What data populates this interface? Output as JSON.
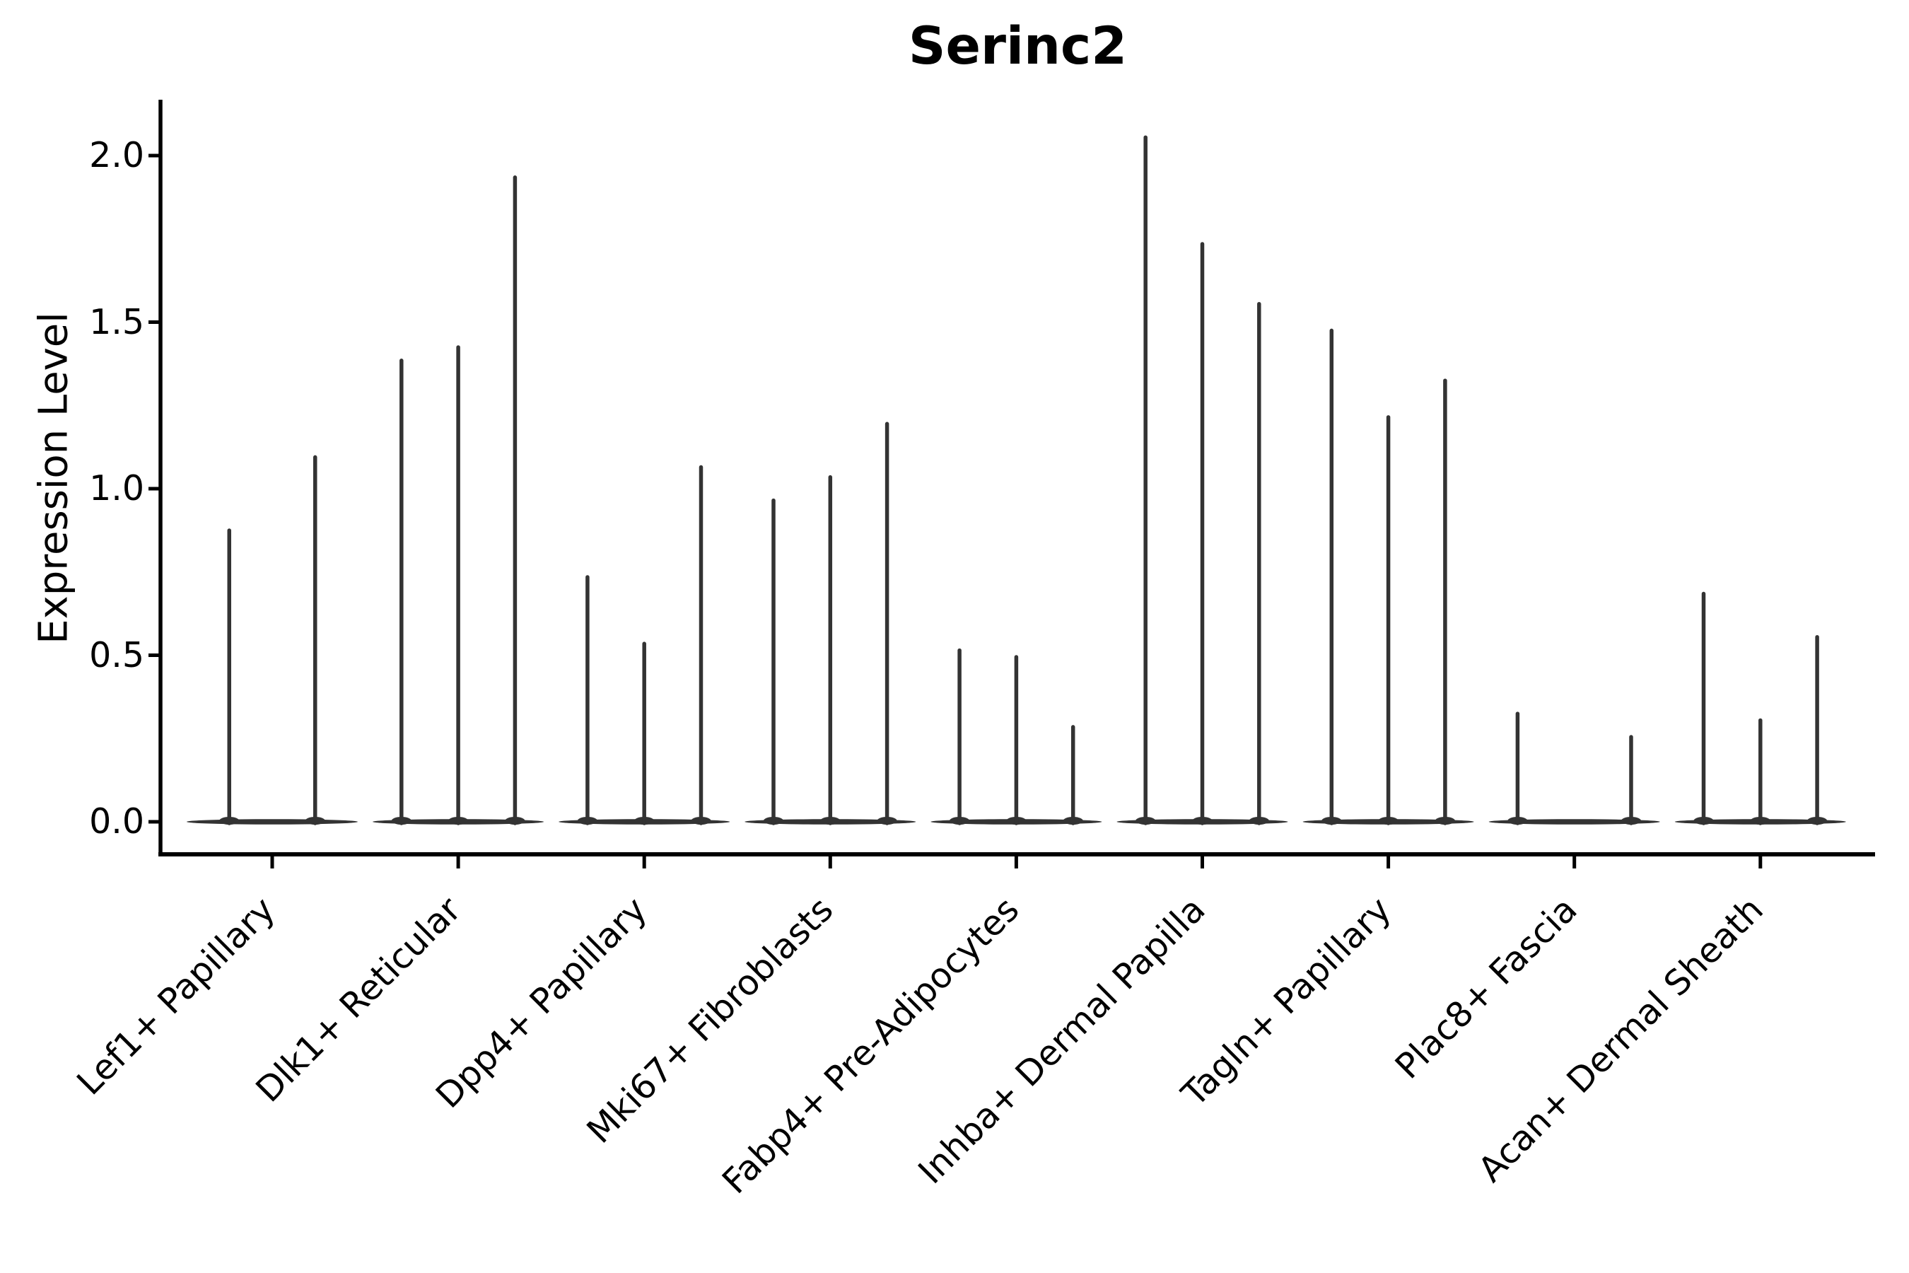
{
  "figure": {
    "background": "#ffffff"
  },
  "chart_data": {
    "type": "violin",
    "title": "Serinc2",
    "ylabel": "Expression Level",
    "xlabel": "",
    "legend_position": "none",
    "grid": false,
    "spines": [
      "left",
      "bottom"
    ],
    "x_label_rotation_deg": 45,
    "ylim": [
      -0.1,
      2.17
    ],
    "y_ticks": [
      {
        "value": 0.0,
        "label": "0.0"
      },
      {
        "value": 0.5,
        "label": "0.5"
      },
      {
        "value": 1.0,
        "label": "1.0"
      },
      {
        "value": 1.5,
        "label": "1.5"
      },
      {
        "value": 2.0,
        "label": "2.0"
      }
    ],
    "categories": [
      "Lef1+ Papillary",
      "Dlk1+ Reticular",
      "Dpp4+ Papillary",
      "Mki67+ Fibroblasts",
      "Fabp4+ Pre-Adipocytes",
      "Inhba+ Dermal Papilla",
      "Tagln+ Papillary",
      "Plac8+ Fascia",
      "Acan+ Dermal Sheath"
    ],
    "groups": [
      {
        "category": "Lef1+ Papillary",
        "violin_peaks": [
          0.88,
          1.1
        ]
      },
      {
        "category": "Dlk1+ Reticular",
        "violin_peaks": [
          1.39,
          1.43,
          1.94
        ]
      },
      {
        "category": "Dpp4+ Papillary",
        "violin_peaks": [
          0.74,
          0.54,
          1.07
        ]
      },
      {
        "category": "Mki67+ Fibroblasts",
        "violin_peaks": [
          0.97,
          1.04,
          1.2
        ]
      },
      {
        "category": "Fabp4+ Pre-Adipocytes",
        "violin_peaks": [
          0.52,
          0.5,
          0.29
        ]
      },
      {
        "category": "Inhba+ Dermal Papilla",
        "violin_peaks": [
          2.06,
          1.74,
          1.56
        ]
      },
      {
        "category": "Tagln+ Papillary",
        "violin_peaks": [
          1.48,
          1.22,
          1.33
        ]
      },
      {
        "category": "Plac8+ Fascia",
        "violin_peaks": [
          0.33,
          0.0,
          0.26
        ]
      },
      {
        "category": "Acan+ Dermal Sheath",
        "violin_peaks": [
          0.69,
          0.31,
          0.56
        ]
      }
    ],
    "colors": {
      "violin": "#333333",
      "axis": "#000000",
      "text": "#000000",
      "background": "#ffffff"
    }
  }
}
